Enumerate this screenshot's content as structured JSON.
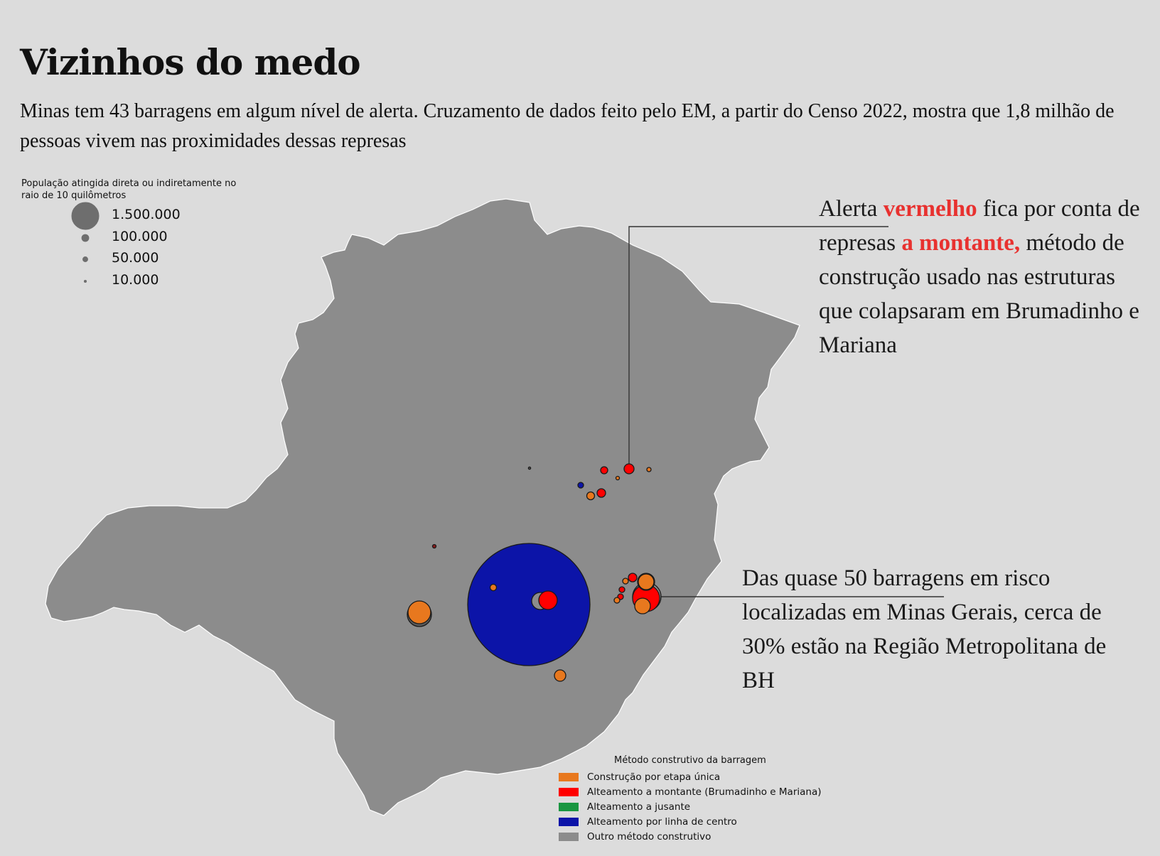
{
  "header": {
    "title": "Vizinhos do medo",
    "subtitle": "Minas tem 43 barragens em algum nível de alerta. Cruzamento de dados feito pelo EM, a partir do Censo 2022, mostra que 1,8 milhão de pessoas vivem nas proximidades dessas represas"
  },
  "size_legend": {
    "title": "População atingida direta ou indiretamente no raio de 10 quilômetros",
    "items": [
      {
        "label": "1.500.000",
        "value": 1500000
      },
      {
        "label": "100.000",
        "value": 100000
      },
      {
        "label": "50.000",
        "value": 50000
      },
      {
        "label": "10.000",
        "value": 10000
      }
    ]
  },
  "annotations": {
    "red": {
      "t1": "Alerta ",
      "h1": "vermelho",
      "t2": " fica por conta de represas ",
      "h2": "a montante,",
      "t3": " método de construção usado nas estruturas que colapsaram em Brumadinho e Mariana"
    },
    "bh": {
      "text": "Das quase 50 barragens em risco localizadas em Minas Gerais, cerca de 30% estão na Região Metropolitana de BH"
    }
  },
  "category_legend": {
    "title": "Método construtivo da barragem",
    "items": [
      {
        "label": "Construção por etapa única",
        "color": "#e8781e"
      },
      {
        "label": "Alteamento a montante (Brumadinho e Mariana)",
        "color": "#ff0000"
      },
      {
        "label": "Alteamento a jusante",
        "color": "#1a9641"
      },
      {
        "label": "Alteamento por linha de centro",
        "color": "#0c14a8"
      },
      {
        "label": "Outro método construtivo",
        "color": "#8c8c8c"
      }
    ]
  },
  "colors": {
    "background": "#dcdcdc",
    "state": "#8c8c8c",
    "highlight": "#e8312f"
  }
}
